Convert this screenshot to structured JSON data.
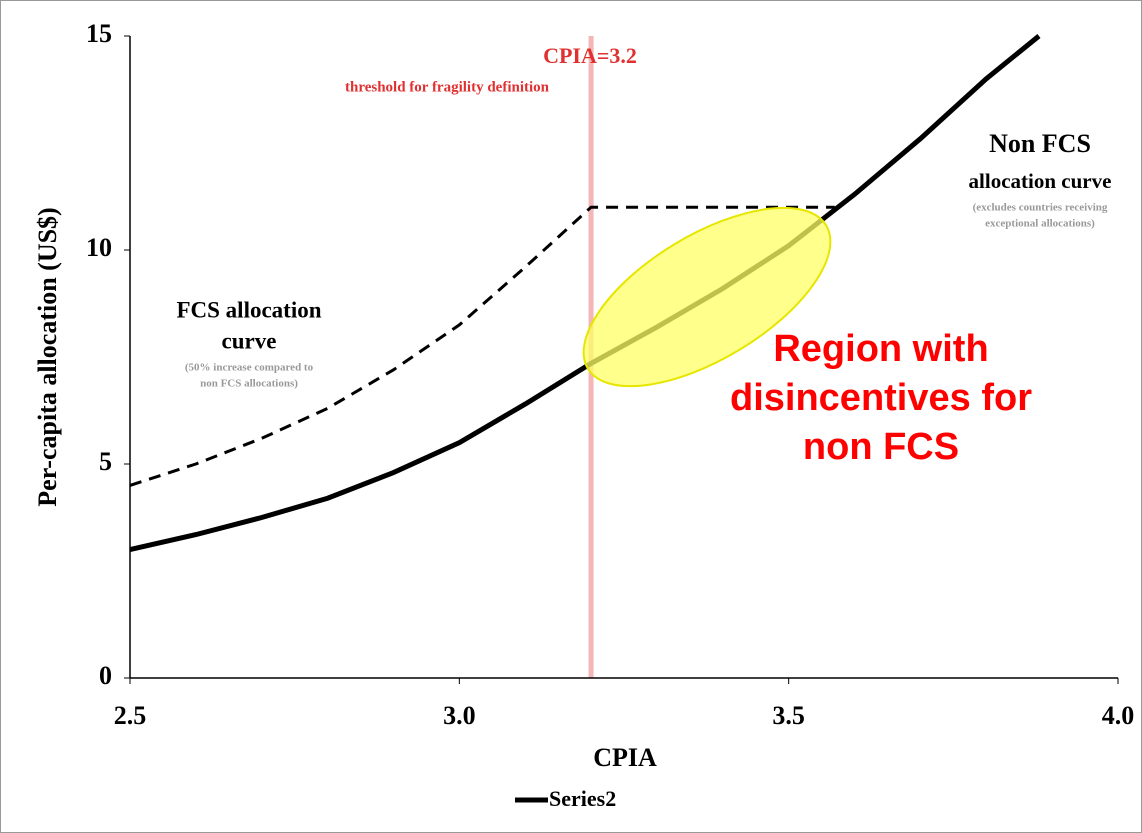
{
  "chart_data": {
    "type": "line",
    "x_label": "CPIA",
    "y_label": "Per-capita allocation (US$)",
    "xlim": [
      2.5,
      4.0
    ],
    "ylim": [
      0,
      15
    ],
    "xticks": [
      2.5,
      {
        "value": 3,
        "label": "3.0"
      },
      3.5,
      {
        "value": 4,
        "label": "4.0"
      }
    ],
    "yticks": [
      0,
      5,
      10,
      15
    ],
    "threshold_x": 3.2,
    "threshold_color": "#f4b6b6",
    "series": [
      {
        "name": "Series2",
        "color": "#000000",
        "dashed": false,
        "x": [
          2.5,
          2.6,
          2.7,
          2.8,
          2.9,
          3.0,
          3.1,
          3.2,
          3.3,
          3.4,
          3.5,
          3.6,
          3.7,
          3.8,
          3.88
        ],
        "values": [
          3.0,
          3.35,
          3.75,
          4.2,
          4.8,
          5.5,
          6.4,
          7.35,
          8.2,
          9.1,
          10.1,
          11.3,
          12.6,
          14.0,
          15.0
        ]
      },
      {
        "color": "#000000",
        "dashed": true,
        "x": [
          2.5,
          2.6,
          2.7,
          2.8,
          2.9,
          3.0,
          3.1,
          3.2,
          3.57
        ],
        "values": [
          4.5,
          5.0,
          5.6,
          6.3,
          7.2,
          8.25,
          9.6,
          11.0,
          11.0
        ]
      }
    ],
    "annotations": {
      "threshold_title": "CPIA=3.2",
      "threshold_sub": "threshold for fragility definition",
      "nonfcs_title": "Non FCS",
      "nonfcs_sub": "allocation curve",
      "nonfcs_note1": "(excludes countries receiving",
      "nonfcs_note2": "exceptional allocations)",
      "fcs_title1": "FCS allocation",
      "fcs_title2": "curve",
      "fcs_note1": "(50% increase compared to",
      "fcs_note2": "non FCS allocations)",
      "region1": "Region with",
      "region2": "disincentives for",
      "region3": "non FCS"
    }
  }
}
